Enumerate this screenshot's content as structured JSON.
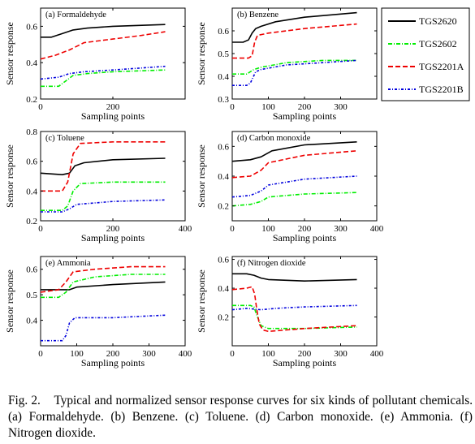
{
  "figure": {
    "caption_label": "Fig. 2.",
    "caption_text": "Typical and normalized sensor response curves for six kinds of pollutant chemicals. (a) Formaldehyde. (b) Benzene. (c) Toluene. (d) Carbon monoxide. (e) Ammonia. (f) Nitrogen dioxide."
  },
  "legend": [
    {
      "name": "TGS2620",
      "color": "#000000",
      "dash": ""
    },
    {
      "name": "TGS2602",
      "color": "#00ee00",
      "dash": "5 2 1 2"
    },
    {
      "name": "TGS2201A",
      "color": "#ee0000",
      "dash": "6 3"
    },
    {
      "name": "TGS2201B",
      "color": "#0000dd",
      "dash": "3 2 1 2"
    }
  ],
  "chart_data": [
    {
      "type": "line",
      "title": "(a) Formaldehyde",
      "xlabel": "Sampling points",
      "ylabel": "Sensor response",
      "xlim": [
        0,
        400
      ],
      "ylim": [
        0.2,
        0.7
      ],
      "xticks": [
        0,
        200
      ],
      "yticks": [
        0.2,
        0.4,
        0.6
      ],
      "series": [
        {
          "name": "TGS2620",
          "points": [
            [
              0,
              0.54
            ],
            [
              30,
              0.54
            ],
            [
              60,
              0.56
            ],
            [
              90,
              0.58
            ],
            [
              130,
              0.59
            ],
            [
              200,
              0.6
            ],
            [
              345,
              0.61
            ]
          ]
        },
        {
          "name": "TGS2602",
          "points": [
            [
              0,
              0.27
            ],
            [
              50,
              0.27
            ],
            [
              70,
              0.3
            ],
            [
              90,
              0.33
            ],
            [
              130,
              0.34
            ],
            [
              200,
              0.35
            ],
            [
              345,
              0.36
            ]
          ]
        },
        {
          "name": "TGS2201A",
          "points": [
            [
              0,
              0.42
            ],
            [
              40,
              0.44
            ],
            [
              80,
              0.47
            ],
            [
              120,
              0.51
            ],
            [
              200,
              0.53
            ],
            [
              280,
              0.55
            ],
            [
              345,
              0.57
            ]
          ]
        },
        {
          "name": "TGS2201B",
          "points": [
            [
              0,
              0.31
            ],
            [
              50,
              0.32
            ],
            [
              80,
              0.34
            ],
            [
              120,
              0.35
            ],
            [
              200,
              0.36
            ],
            [
              345,
              0.38
            ]
          ]
        }
      ]
    },
    {
      "type": "line",
      "title": "(b) Benzene",
      "xlabel": "Sampling points",
      "ylabel": "Sensor response",
      "xlim": [
        0,
        400
      ],
      "ylim": [
        0.3,
        0.7
      ],
      "xticks": [
        0,
        100,
        200,
        300
      ],
      "yticks": [
        0.3,
        0.4,
        0.5,
        0.6
      ],
      "series": [
        {
          "name": "TGS2620",
          "points": [
            [
              0,
              0.55
            ],
            [
              30,
              0.55
            ],
            [
              45,
              0.56
            ],
            [
              55,
              0.59
            ],
            [
              65,
              0.61
            ],
            [
              80,
              0.62
            ],
            [
              120,
              0.64
            ],
            [
              200,
              0.66
            ],
            [
              345,
              0.68
            ]
          ]
        },
        {
          "name": "TGS2602",
          "points": [
            [
              0,
              0.41
            ],
            [
              40,
              0.41
            ],
            [
              60,
              0.43
            ],
            [
              80,
              0.44
            ],
            [
              150,
              0.46
            ],
            [
              250,
              0.47
            ],
            [
              345,
              0.47
            ]
          ]
        },
        {
          "name": "TGS2201A",
          "points": [
            [
              0,
              0.48
            ],
            [
              45,
              0.48
            ],
            [
              55,
              0.49
            ],
            [
              62,
              0.55
            ],
            [
              70,
              0.58
            ],
            [
              100,
              0.59
            ],
            [
              200,
              0.61
            ],
            [
              345,
              0.63
            ]
          ]
        },
        {
          "name": "TGS2201B",
          "points": [
            [
              0,
              0.36
            ],
            [
              40,
              0.36
            ],
            [
              50,
              0.37
            ],
            [
              65,
              0.42
            ],
            [
              80,
              0.43
            ],
            [
              150,
              0.45
            ],
            [
              250,
              0.46
            ],
            [
              345,
              0.47
            ]
          ]
        }
      ]
    },
    {
      "type": "line",
      "title": "(c) Toluene",
      "xlabel": "Sampling points",
      "ylabel": "Sensor response",
      "xlim": [
        0,
        400
      ],
      "ylim": [
        0.2,
        0.8
      ],
      "xticks": [
        0,
        200,
        400
      ],
      "yticks": [
        0.2,
        0.4,
        0.6,
        0.8
      ],
      "series": [
        {
          "name": "TGS2620",
          "points": [
            [
              0,
              0.52
            ],
            [
              60,
              0.51
            ],
            [
              80,
              0.52
            ],
            [
              95,
              0.57
            ],
            [
              120,
              0.59
            ],
            [
              200,
              0.61
            ],
            [
              345,
              0.62
            ]
          ]
        },
        {
          "name": "TGS2602",
          "points": [
            [
              0,
              0.27
            ],
            [
              60,
              0.27
            ],
            [
              75,
              0.3
            ],
            [
              90,
              0.4
            ],
            [
              110,
              0.45
            ],
            [
              200,
              0.46
            ],
            [
              345,
              0.46
            ]
          ]
        },
        {
          "name": "TGS2201A",
          "points": [
            [
              0,
              0.4
            ],
            [
              60,
              0.4
            ],
            [
              75,
              0.46
            ],
            [
              90,
              0.65
            ],
            [
              110,
              0.72
            ],
            [
              200,
              0.73
            ],
            [
              345,
              0.73
            ]
          ]
        },
        {
          "name": "TGS2201B",
          "points": [
            [
              0,
              0.26
            ],
            [
              60,
              0.26
            ],
            [
              80,
              0.28
            ],
            [
              100,
              0.31
            ],
            [
              200,
              0.33
            ],
            [
              345,
              0.34
            ]
          ]
        }
      ]
    },
    {
      "type": "line",
      "title": "(d) Carbon monoxide",
      "xlabel": "Sampling points",
      "ylabel": "Sensor response",
      "xlim": [
        0,
        400
      ],
      "ylim": [
        0.1,
        0.7
      ],
      "xticks": [
        0,
        100,
        200,
        300,
        400
      ],
      "yticks": [
        0.2,
        0.4,
        0.6
      ],
      "series": [
        {
          "name": "TGS2620",
          "points": [
            [
              0,
              0.5
            ],
            [
              50,
              0.51
            ],
            [
              80,
              0.53
            ],
            [
              110,
              0.57
            ],
            [
              200,
              0.61
            ],
            [
              345,
              0.63
            ]
          ]
        },
        {
          "name": "TGS2602",
          "points": [
            [
              0,
              0.2
            ],
            [
              50,
              0.21
            ],
            [
              80,
              0.23
            ],
            [
              100,
              0.26
            ],
            [
              200,
              0.28
            ],
            [
              345,
              0.29
            ]
          ]
        },
        {
          "name": "TGS2201A",
          "points": [
            [
              0,
              0.39
            ],
            [
              50,
              0.4
            ],
            [
              80,
              0.44
            ],
            [
              100,
              0.49
            ],
            [
              200,
              0.54
            ],
            [
              345,
              0.57
            ]
          ]
        },
        {
          "name": "TGS2201B",
          "points": [
            [
              0,
              0.26
            ],
            [
              50,
              0.27
            ],
            [
              80,
              0.3
            ],
            [
              100,
              0.34
            ],
            [
              200,
              0.38
            ],
            [
              345,
              0.4
            ]
          ]
        }
      ]
    },
    {
      "type": "line",
      "title": "(e) Ammonia",
      "xlabel": "Sampling points",
      "ylabel": "Sensor response",
      "xlim": [
        0,
        400
      ],
      "ylim": [
        0.3,
        0.65
      ],
      "xticks": [
        0,
        100,
        200,
        300,
        400
      ],
      "yticks": [
        0.4,
        0.5,
        0.6
      ],
      "series": [
        {
          "name": "TGS2620",
          "points": [
            [
              0,
              0.52
            ],
            [
              60,
              0.52
            ],
            [
              80,
              0.52
            ],
            [
              100,
              0.53
            ],
            [
              200,
              0.54
            ],
            [
              345,
              0.55
            ]
          ]
        },
        {
          "name": "TGS2602",
          "points": [
            [
              0,
              0.49
            ],
            [
              50,
              0.49
            ],
            [
              70,
              0.51
            ],
            [
              90,
              0.55
            ],
            [
              150,
              0.57
            ],
            [
              250,
              0.58
            ],
            [
              345,
              0.58
            ]
          ]
        },
        {
          "name": "TGS2201A",
          "points": [
            [
              0,
              0.51
            ],
            [
              50,
              0.52
            ],
            [
              70,
              0.55
            ],
            [
              90,
              0.59
            ],
            [
              150,
              0.6
            ],
            [
              250,
              0.61
            ],
            [
              345,
              0.61
            ]
          ]
        },
        {
          "name": "TGS2201B",
          "points": [
            [
              0,
              0.32
            ],
            [
              60,
              0.32
            ],
            [
              70,
              0.34
            ],
            [
              80,
              0.39
            ],
            [
              95,
              0.41
            ],
            [
              200,
              0.41
            ],
            [
              345,
              0.42
            ]
          ]
        }
      ]
    },
    {
      "type": "line",
      "title": "(f) Nitrogen dioxide",
      "xlabel": "Sampling points",
      "ylabel": "Sensor response",
      "xlim": [
        0,
        400
      ],
      "ylim": [
        0.0,
        0.62
      ],
      "xticks": [
        0,
        100,
        200,
        300,
        400
      ],
      "yticks": [
        0.2,
        0.4,
        0.6
      ],
      "series": [
        {
          "name": "TGS2620",
          "points": [
            [
              0,
              0.5
            ],
            [
              40,
              0.5
            ],
            [
              60,
              0.49
            ],
            [
              80,
              0.47
            ],
            [
              100,
              0.46
            ],
            [
              200,
              0.45
            ],
            [
              345,
              0.46
            ]
          ]
        },
        {
          "name": "TGS2602",
          "points": [
            [
              0,
              0.28
            ],
            [
              50,
              0.28
            ],
            [
              60,
              0.27
            ],
            [
              70,
              0.2
            ],
            [
              80,
              0.14
            ],
            [
              100,
              0.12
            ],
            [
              200,
              0.12
            ],
            [
              345,
              0.13
            ]
          ]
        },
        {
          "name": "TGS2201A",
          "points": [
            [
              0,
              0.39
            ],
            [
              40,
              0.4
            ],
            [
              55,
              0.41
            ],
            [
              62,
              0.36
            ],
            [
              68,
              0.25
            ],
            [
              75,
              0.15
            ],
            [
              85,
              0.11
            ],
            [
              100,
              0.1
            ],
            [
              200,
              0.12
            ],
            [
              345,
              0.14
            ]
          ]
        },
        {
          "name": "TGS2201B",
          "points": [
            [
              0,
              0.25
            ],
            [
              40,
              0.26
            ],
            [
              80,
              0.25
            ],
            [
              120,
              0.26
            ],
            [
              200,
              0.27
            ],
            [
              345,
              0.28
            ]
          ]
        }
      ]
    }
  ]
}
